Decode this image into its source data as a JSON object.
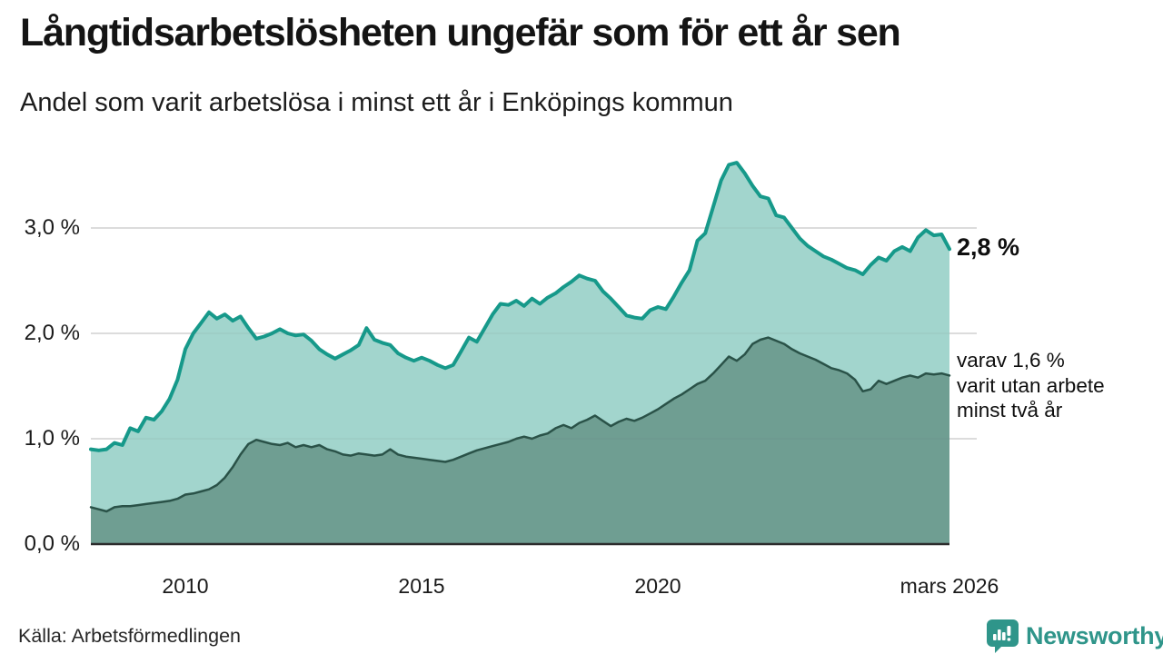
{
  "header": {
    "title": "Långtidsarbetslösheten ungefär som för ett år sen",
    "subtitle": "Andel som varit arbetslösa i minst ett år i Enköpings kommun"
  },
  "chart_data": {
    "type": "area",
    "title": "Långtidsarbetslösheten ungefär som för ett år sen",
    "subtitle": "Andel som varit arbetslösa i minst ett år i Enköpings kommun",
    "region": "Enköpings kommun",
    "x_start": 2008.0,
    "x_step_years": 0.1666667,
    "x_end_label": "mars 2026",
    "ylim": [
      0,
      3.95
    ],
    "grid": "horizontal",
    "y_ticks": [
      {
        "value": 0.0,
        "label": "0,0 %"
      },
      {
        "value": 1.0,
        "label": "1,0 %"
      },
      {
        "value": 2.0,
        "label": "2,0 %"
      },
      {
        "value": 3.0,
        "label": "3,0 %"
      }
    ],
    "x_ticks": [
      {
        "x": 2010,
        "label": "2010"
      },
      {
        "x": 2015,
        "label": "2015"
      },
      {
        "x": 2020,
        "label": "2020"
      },
      {
        "x": 2026.17,
        "label": "mars 2026"
      }
    ],
    "series": [
      {
        "name": "Andel arbetslösa minst ett år",
        "end_label": "2,8 %",
        "line_color": "#16998a",
        "fill_color": "#a2d5cd",
        "values": [
          0.9,
          0.89,
          0.9,
          0.96,
          0.94,
          1.1,
          1.07,
          1.2,
          1.18,
          1.26,
          1.38,
          1.56,
          1.85,
          2.0,
          2.1,
          2.2,
          2.14,
          2.18,
          2.12,
          2.16,
          2.05,
          1.95,
          1.97,
          2.0,
          2.04,
          2.0,
          1.98,
          1.99,
          1.93,
          1.85,
          1.8,
          1.76,
          1.8,
          1.84,
          1.89,
          2.05,
          1.94,
          1.91,
          1.89,
          1.81,
          1.77,
          1.74,
          1.77,
          1.74,
          1.7,
          1.67,
          1.7,
          1.83,
          1.96,
          1.92,
          2.05,
          2.18,
          2.28,
          2.27,
          2.31,
          2.26,
          2.33,
          2.28,
          2.34,
          2.38,
          2.44,
          2.49,
          2.55,
          2.52,
          2.5,
          2.4,
          2.33,
          2.25,
          2.17,
          2.15,
          2.14,
          2.22,
          2.25,
          2.23,
          2.35,
          2.48,
          2.6,
          2.88,
          2.95,
          3.2,
          3.45,
          3.6,
          3.62,
          3.52,
          3.4,
          3.3,
          3.28,
          3.12,
          3.1,
          3.0,
          2.9,
          2.83,
          2.78,
          2.73,
          2.7,
          2.66,
          2.62,
          2.6,
          2.56,
          2.65,
          2.72,
          2.69,
          2.78,
          2.82,
          2.78,
          2.91,
          2.98,
          2.93,
          2.94,
          2.8
        ]
      },
      {
        "name": "Varav utan arbete minst två år",
        "end_label": "varav 1,6 % varit utan arbete minst två år",
        "line_color": "#2a5248",
        "fill_color": "#6f9e92",
        "values": [
          0.35,
          0.33,
          0.31,
          0.35,
          0.36,
          0.36,
          0.37,
          0.38,
          0.39,
          0.4,
          0.41,
          0.43,
          0.47,
          0.48,
          0.5,
          0.52,
          0.56,
          0.63,
          0.73,
          0.85,
          0.95,
          0.99,
          0.97,
          0.95,
          0.94,
          0.96,
          0.92,
          0.94,
          0.92,
          0.94,
          0.9,
          0.88,
          0.85,
          0.84,
          0.86,
          0.85,
          0.84,
          0.85,
          0.9,
          0.85,
          0.83,
          0.82,
          0.81,
          0.8,
          0.79,
          0.78,
          0.8,
          0.83,
          0.86,
          0.89,
          0.91,
          0.93,
          0.95,
          0.97,
          1.0,
          1.02,
          1.0,
          1.03,
          1.05,
          1.1,
          1.13,
          1.1,
          1.15,
          1.18,
          1.22,
          1.17,
          1.12,
          1.16,
          1.19,
          1.17,
          1.2,
          1.24,
          1.28,
          1.33,
          1.38,
          1.42,
          1.47,
          1.52,
          1.55,
          1.62,
          1.7,
          1.78,
          1.74,
          1.8,
          1.9,
          1.94,
          1.96,
          1.93,
          1.9,
          1.85,
          1.81,
          1.78,
          1.75,
          1.71,
          1.67,
          1.65,
          1.62,
          1.56,
          1.45,
          1.47,
          1.55,
          1.52,
          1.55,
          1.58,
          1.6,
          1.58,
          1.62,
          1.61,
          1.62,
          1.6
        ]
      }
    ]
  },
  "annotations": {
    "end_value": "2,8 %",
    "line1": "varav 1,6 %",
    "line2": "varit utan arbete",
    "line3": "minst två år"
  },
  "footer": {
    "source": "Källa: Arbetsförmedlingen",
    "brand": "Newsworthy"
  },
  "colors": {
    "line_total": "#16998a",
    "fill_total": "#a2d5cd",
    "line_two_years": "#2a5248",
    "fill_two_years": "#6f9e92",
    "grid": "#d9d9d9",
    "axis": "#2b2b2b",
    "brand": "#2f958a"
  }
}
